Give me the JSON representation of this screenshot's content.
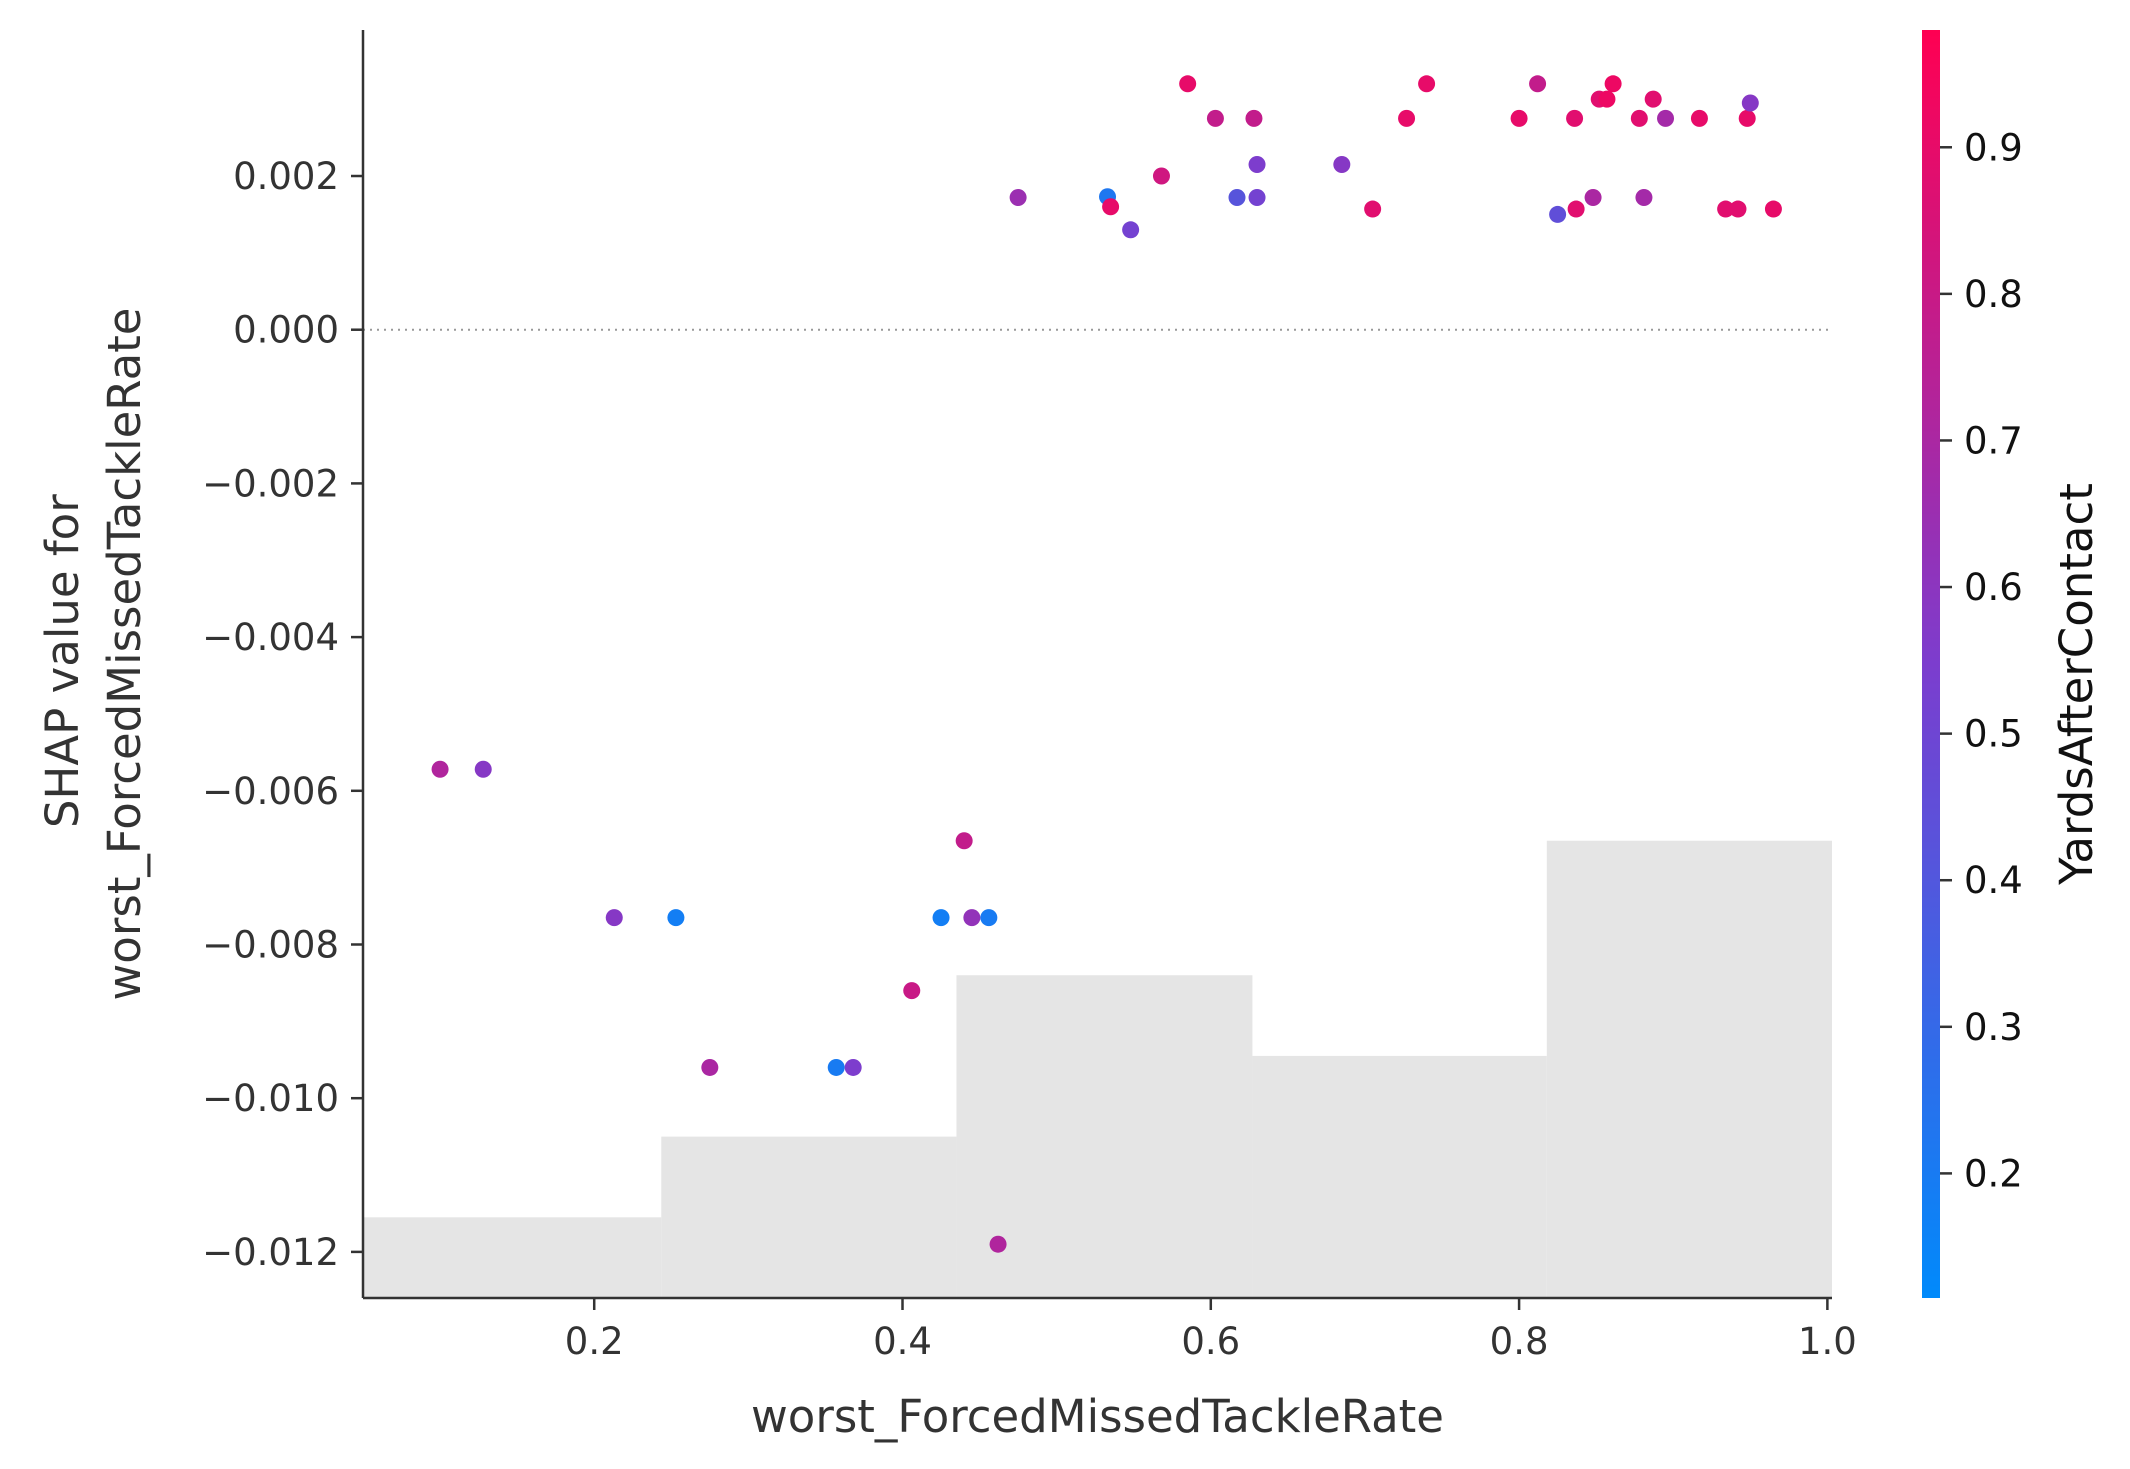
{
  "chart_data": {
    "type": "scatter",
    "title": "",
    "xlabel": "worst_ForcedMissedTackleRate",
    "ylabel_lines": [
      "SHAP value for",
      "worst_ForcedMissedTackleRate"
    ],
    "xlim": [
      0.05,
      1.003
    ],
    "ylim": [
      -0.0126,
      0.0039
    ],
    "x_ticks": [
      0.2,
      0.4,
      0.6,
      0.8,
      1.0
    ],
    "x_tick_labels": [
      "0.2",
      "0.4",
      "0.6",
      "0.8",
      "1.0"
    ],
    "y_ticks": [
      0.002,
      0.0,
      -0.002,
      -0.004,
      -0.006,
      -0.008,
      -0.01,
      -0.012
    ],
    "y_tick_labels": [
      "0.002",
      "0.000",
      "−0.002",
      "−0.004",
      "−0.006",
      "−0.008",
      "−0.010",
      "−0.012"
    ],
    "zero_line": true,
    "grid": false,
    "colorbar": {
      "label": "YardsAfterContact",
      "range": [
        0.115,
        0.98
      ],
      "ticks": [
        0.2,
        0.3,
        0.4,
        0.5,
        0.6,
        0.7,
        0.8,
        0.9
      ],
      "tick_labels": [
        "0.2",
        "0.3",
        "0.4",
        "0.5",
        "0.6",
        "0.7",
        "0.8",
        "0.9"
      ],
      "color_low": "#008afb",
      "color_mid": "#7c3dce",
      "color_high": "#ff0052"
    },
    "histogram": {
      "color": "#e5e5e5",
      "bins": [
        {
          "x0": 0.05,
          "x1": 0.2435,
          "top": -0.01155
        },
        {
          "x0": 0.2435,
          "x1": 0.435,
          "top": -0.0105
        },
        {
          "x0": 0.435,
          "x1": 0.627,
          "top": -0.0084
        },
        {
          "x0": 0.627,
          "x1": 0.818,
          "top": -0.00945
        },
        {
          "x0": 0.818,
          "x1": 1.003,
          "top": -0.00665
        }
      ]
    },
    "points": [
      {
        "x": 0.585,
        "y": 0.0032,
        "c": 0.9
      },
      {
        "x": 0.603,
        "y": 0.00275,
        "c": 0.78
      },
      {
        "x": 0.628,
        "y": 0.00275,
        "c": 0.78
      },
      {
        "x": 0.63,
        "y": 0.00215,
        "c": 0.55
      },
      {
        "x": 0.617,
        "y": 0.00172,
        "c": 0.42
      },
      {
        "x": 0.63,
        "y": 0.00172,
        "c": 0.52
      },
      {
        "x": 0.475,
        "y": 0.00172,
        "c": 0.65
      },
      {
        "x": 0.533,
        "y": 0.00173,
        "c": 0.22
      },
      {
        "x": 0.535,
        "y": 0.0016,
        "c": 0.9
      },
      {
        "x": 0.548,
        "y": 0.0013,
        "c": 0.52
      },
      {
        "x": 0.568,
        "y": 0.002,
        "c": 0.82
      },
      {
        "x": 0.685,
        "y": 0.00215,
        "c": 0.58
      },
      {
        "x": 0.705,
        "y": 0.00157,
        "c": 0.88
      },
      {
        "x": 0.727,
        "y": 0.00275,
        "c": 0.9
      },
      {
        "x": 0.74,
        "y": 0.0032,
        "c": 0.9
      },
      {
        "x": 0.8,
        "y": 0.00275,
        "c": 0.9
      },
      {
        "x": 0.812,
        "y": 0.0032,
        "c": 0.78
      },
      {
        "x": 0.825,
        "y": 0.0015,
        "c": 0.45
      },
      {
        "x": 0.836,
        "y": 0.00275,
        "c": 0.88
      },
      {
        "x": 0.837,
        "y": 0.00157,
        "c": 0.88
      },
      {
        "x": 0.848,
        "y": 0.00172,
        "c": 0.7
      },
      {
        "x": 0.852,
        "y": 0.003,
        "c": 0.88
      },
      {
        "x": 0.857,
        "y": 0.003,
        "c": 0.92
      },
      {
        "x": 0.861,
        "y": 0.0032,
        "c": 0.92
      },
      {
        "x": 0.878,
        "y": 0.00275,
        "c": 0.88
      },
      {
        "x": 0.881,
        "y": 0.00172,
        "c": 0.68
      },
      {
        "x": 0.887,
        "y": 0.003,
        "c": 0.88
      },
      {
        "x": 0.895,
        "y": 0.00275,
        "c": 0.68
      },
      {
        "x": 0.917,
        "y": 0.00275,
        "c": 0.9
      },
      {
        "x": 0.934,
        "y": 0.00157,
        "c": 0.88
      },
      {
        "x": 0.942,
        "y": 0.00157,
        "c": 0.88
      },
      {
        "x": 0.948,
        "y": 0.00275,
        "c": 0.9
      },
      {
        "x": 0.95,
        "y": 0.00295,
        "c": 0.58
      },
      {
        "x": 0.965,
        "y": 0.00157,
        "c": 0.9
      },
      {
        "x": 0.1,
        "y": -0.00572,
        "c": 0.72
      },
      {
        "x": 0.128,
        "y": -0.00572,
        "c": 0.58
      },
      {
        "x": 0.213,
        "y": -0.00765,
        "c": 0.58
      },
      {
        "x": 0.253,
        "y": -0.00765,
        "c": 0.18
      },
      {
        "x": 0.275,
        "y": -0.0096,
        "c": 0.7
      },
      {
        "x": 0.357,
        "y": -0.0096,
        "c": 0.2
      },
      {
        "x": 0.368,
        "y": -0.0096,
        "c": 0.55
      },
      {
        "x": 0.406,
        "y": -0.0086,
        "c": 0.8
      },
      {
        "x": 0.425,
        "y": -0.00765,
        "c": 0.18
      },
      {
        "x": 0.44,
        "y": -0.00665,
        "c": 0.78
      },
      {
        "x": 0.445,
        "y": -0.00765,
        "c": 0.62
      },
      {
        "x": 0.456,
        "y": -0.00765,
        "c": 0.2
      },
      {
        "x": 0.462,
        "y": -0.0119,
        "c": 0.72
      }
    ]
  }
}
